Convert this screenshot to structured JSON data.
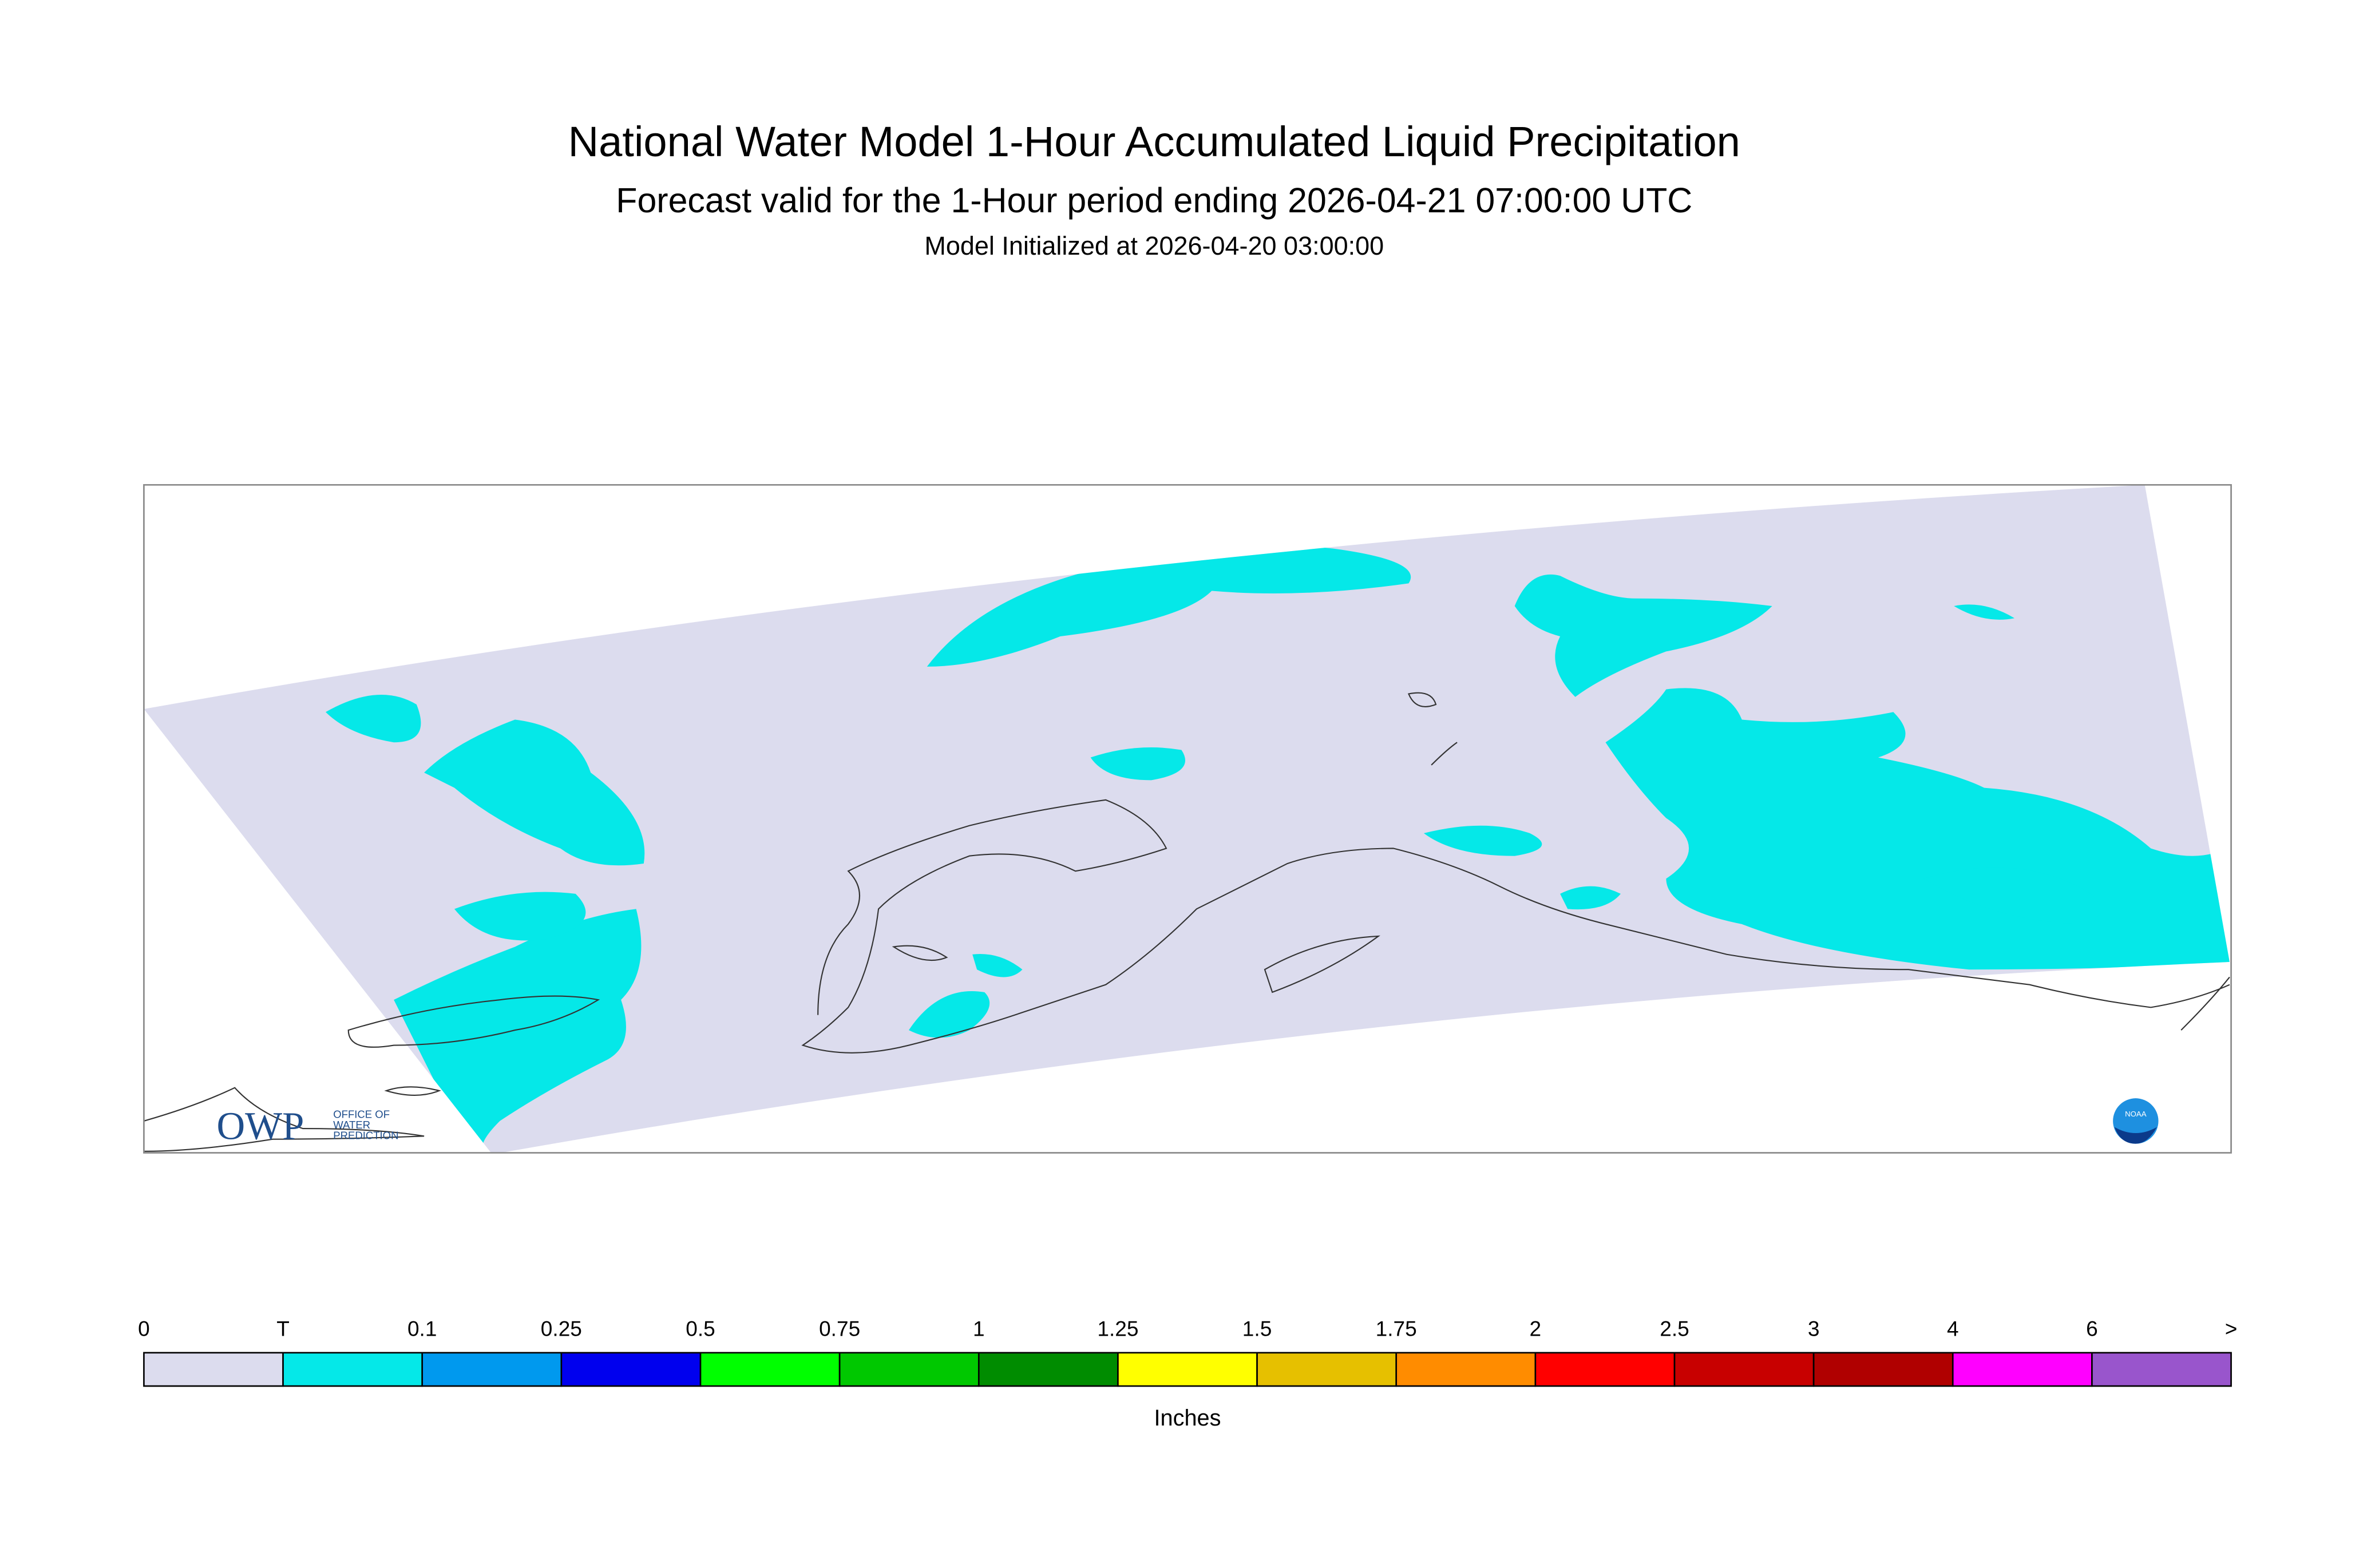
{
  "header": {
    "title": "National Water Model 1-Hour Accumulated Liquid Precipitation",
    "subtitle": "Forecast valid for the 1-Hour period ending 2026-04-21 07:00:00 UTC",
    "initialized": "Model Initialized at 2026-04-20 03:00:00"
  },
  "logos": {
    "owp": "OWP",
    "owp_lines": [
      "OFFICE OF",
      "WATER",
      "PREDICTION"
    ],
    "noaa": "NOAA"
  },
  "legend": {
    "labels": [
      "0",
      "T",
      "0.1",
      "0.25",
      "0.5",
      "0.75",
      "1",
      "1.25",
      "1.5",
      "1.75",
      "2",
      "2.5",
      "3",
      "4",
      "6",
      ">"
    ],
    "colors": [
      "#dcdcee",
      "#05e8e8",
      "#0099ee",
      "#0000ee",
      "#00ff00",
      "#00c800",
      "#008c00",
      "#ffff00",
      "#e6c000",
      "#ff8c00",
      "#ff0000",
      "#c80000",
      "#b00000",
      "#ff00ff",
      "#9955cc"
    ],
    "unit": "Inches"
  }
}
